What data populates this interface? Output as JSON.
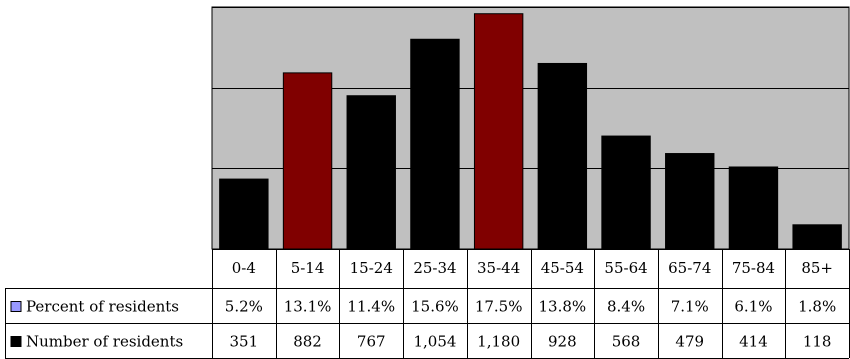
{
  "chart_data": {
    "type": "bar",
    "categories": [
      "0-4",
      "5-14",
      "15-24",
      "25-34",
      "35-44",
      "45-54",
      "55-64",
      "65-74",
      "75-84",
      "85+"
    ],
    "series": [
      {
        "name": "Percent of residents",
        "values": [
          "5.2%",
          "13.1%",
          "11.4%",
          "15.6%",
          "17.5%",
          "13.8%",
          "8.4%",
          "7.1%",
          "6.1%",
          "1.8%"
        ],
        "legend_color": "#9999ff"
      },
      {
        "name": "Number of residents",
        "values": [
          351,
          882,
          767,
          1054,
          1180,
          928,
          568,
          479,
          414,
          118
        ],
        "display": [
          "351",
          "882",
          "767",
          "1,054",
          "1,180",
          "928",
          "568",
          "479",
          "414",
          "118"
        ],
        "legend_color": "#000000"
      }
    ],
    "bar_values": [
      5.2,
      13.1,
      11.4,
      15.6,
      17.5,
      13.8,
      8.4,
      7.1,
      6.1,
      1.8
    ],
    "highlighted_categories": [
      "5-14",
      "35-44"
    ],
    "ylim": [
      0,
      18
    ],
    "gridlines": [
      6,
      12,
      18
    ],
    "grid": true,
    "legend": "table-left",
    "colors": {
      "plot_background": "#c0c0c0",
      "bar": "#000000",
      "bar_highlight": "#800000",
      "gridline": "#000000",
      "table_border": "#000000"
    }
  }
}
